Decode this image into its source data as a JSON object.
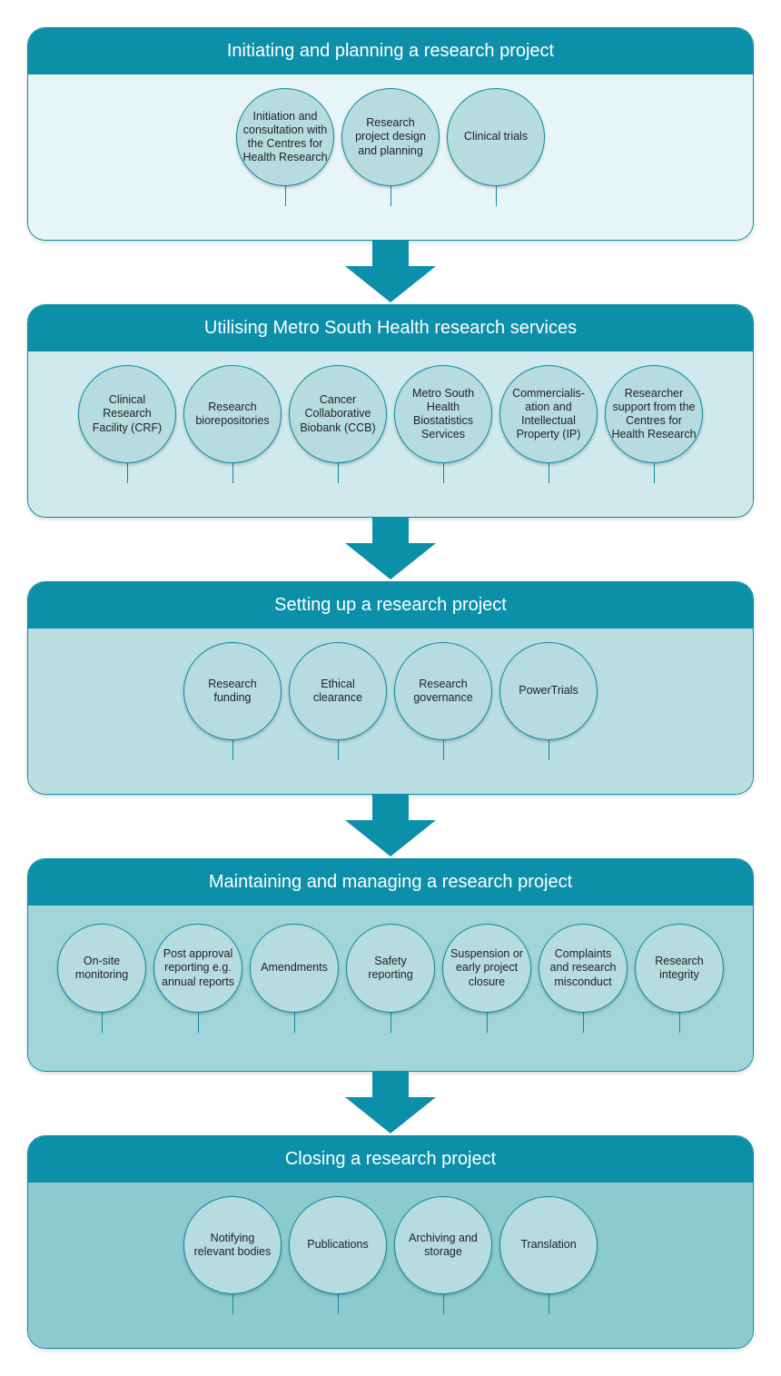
{
  "type": "flowchart",
  "colors": {
    "header_bg": "#0c8fa9",
    "header_text": "#ffffff",
    "border": "#0a8ba4",
    "arrow_fill": "#0c8fa9",
    "circle_text": "#222222"
  },
  "header_fontsize": 20,
  "circle_fontsize": 12.5,
  "stages": [
    {
      "title": "Initiating and planning a research project",
      "body_bg": "#e8f5f6",
      "circle_fill": "#b6dce0",
      "circle_diameter": 108,
      "stem_height": 22,
      "nodes": [
        "Initiation and consultation with the Centres for Health Research",
        "Research project design and planning",
        "Clinical trials"
      ]
    },
    {
      "title": "Utilising Metro South Health research services",
      "body_bg": "#cfe9ec",
      "circle_fill": "#b6dce0",
      "circle_diameter": 108,
      "stem_height": 22,
      "nodes": [
        "Clinical Research Facility (CRF)",
        "Research biorepositories",
        "Cancer Collaborative Biobank (CCB)",
        "Metro South Health Biostatistics Services",
        "Commercialis-ation and Intellectual Property (IP)",
        "Researcher support from the Centres for Health Research"
      ]
    },
    {
      "title": "Setting up a research project",
      "body_bg": "#b9dfe3",
      "circle_fill": "#b6dce0",
      "circle_diameter": 108,
      "stem_height": 22,
      "nodes": [
        "Research funding",
        "Ethical clearance",
        "Research governance",
        "PowerTrials"
      ]
    },
    {
      "title": "Maintaining and managing a research project",
      "body_bg": "#a2d5da",
      "circle_fill": "#b6dce0",
      "circle_diameter": 98,
      "stem_height": 22,
      "nodes": [
        "On-site monitoring",
        "Post approval reporting e.g. annual reports",
        "Amendments",
        "Safety reporting",
        "Suspension or early project closure",
        "Complaints and research misconduct",
        "Research integrity"
      ]
    },
    {
      "title": "Closing a research project",
      "body_bg": "#8bcbd0",
      "circle_fill": "#b6dce0",
      "circle_diameter": 108,
      "stem_height": 22,
      "nodes": [
        "Notifying relevant bodies",
        "Publications",
        "Archiving and storage",
        "Translation"
      ]
    }
  ]
}
